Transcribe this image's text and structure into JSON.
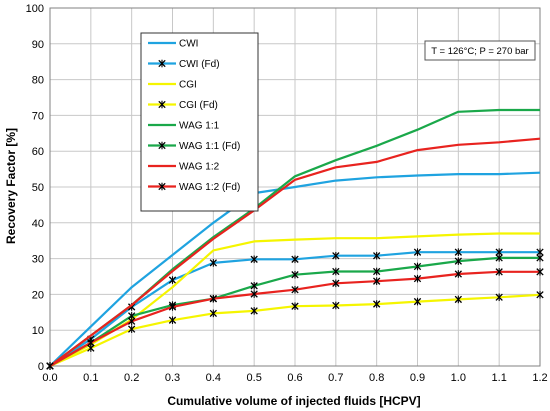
{
  "chart_data": {
    "type": "line",
    "xlabel": "Cumulative volume of injected fluids [HCPV]",
    "ylabel": "Recovery Factor [%]",
    "annotation": "T = 126°C; P = 270 bar",
    "xlim": [
      0,
      1.2
    ],
    "ylim": [
      0,
      100
    ],
    "xticks": [
      "0.0",
      "0.1",
      "0.2",
      "0.3",
      "0.4",
      "0.5",
      "0.6",
      "0.7",
      "0.8",
      "0.9",
      "1.0",
      "1.1",
      "1.2"
    ],
    "yticks": [
      "0",
      "10",
      "20",
      "30",
      "40",
      "50",
      "60",
      "70",
      "80",
      "90",
      "100"
    ],
    "grid": true,
    "legend_position": "upper-left",
    "series": [
      {
        "name": "CWI",
        "color": "#1fa3e0",
        "marker": "none",
        "x": [
          0,
          0.1,
          0.2,
          0.3,
          0.4,
          0.5,
          0.6,
          0.7,
          0.8,
          0.9,
          1.0,
          1.1,
          1.2
        ],
        "y": [
          0,
          11,
          22,
          31,
          40,
          48.3,
          50,
          51.8,
          52.7,
          53.2,
          53.6,
          53.6,
          54
        ]
      },
      {
        "name": "CWI (Fd)",
        "color": "#1fa3e0",
        "marker": "x",
        "x": [
          0,
          0.1,
          0.2,
          0.3,
          0.4,
          0.5,
          0.6,
          0.7,
          0.8,
          0.9,
          1.0,
          1.1,
          1.2
        ],
        "y": [
          0,
          7.5,
          16.5,
          24,
          28.8,
          29.8,
          29.8,
          30.8,
          30.8,
          31.8,
          31.8,
          31.8,
          31.8
        ]
      },
      {
        "name": "CGI",
        "color": "#f5f500",
        "marker": "none",
        "x": [
          0,
          0.1,
          0.2,
          0.3,
          0.4,
          0.5,
          0.6,
          0.7,
          0.8,
          0.9,
          1.0,
          1.1,
          1.2
        ],
        "y": [
          0,
          6,
          13,
          22,
          32.3,
          34.8,
          35.3,
          35.7,
          35.7,
          36.2,
          36.7,
          37,
          37
        ]
      },
      {
        "name": "CGI (Fd)",
        "color": "#f5f500",
        "marker": "x",
        "x": [
          0,
          0.1,
          0.2,
          0.3,
          0.4,
          0.5,
          0.6,
          0.7,
          0.8,
          0.9,
          1.0,
          1.1,
          1.2
        ],
        "y": [
          0,
          5,
          10.3,
          12.8,
          14.7,
          15.4,
          16.7,
          16.9,
          17.3,
          18,
          18.6,
          19.2,
          19.9
        ]
      },
      {
        "name": "WAG 1:1",
        "color": "#1aa84a",
        "marker": "none",
        "x": [
          0,
          0.1,
          0.2,
          0.3,
          0.4,
          0.5,
          0.6,
          0.7,
          0.8,
          0.9,
          1.0,
          1.1,
          1.2
        ],
        "y": [
          0,
          8.5,
          17,
          27,
          36,
          44,
          53,
          57.5,
          61.5,
          66,
          71,
          71.5,
          71.5
        ]
      },
      {
        "name": "WAG 1:1 (Fd)",
        "color": "#1aa84a",
        "marker": "x",
        "x": [
          0,
          0.1,
          0.2,
          0.3,
          0.4,
          0.5,
          0.6,
          0.7,
          0.8,
          0.9,
          1.0,
          1.1,
          1.2
        ],
        "y": [
          0,
          6.5,
          14,
          17,
          18.8,
          22.4,
          25.5,
          26.4,
          26.4,
          27.8,
          29.3,
          30.2,
          30.2
        ]
      },
      {
        "name": "WAG 1:2",
        "color": "#e8231f",
        "marker": "none",
        "x": [
          0,
          0.1,
          0.2,
          0.3,
          0.4,
          0.5,
          0.6,
          0.7,
          0.8,
          0.9,
          1.0,
          1.1,
          1.2
        ],
        "y": [
          0,
          8.5,
          17,
          26.5,
          35.5,
          43.5,
          52,
          55.5,
          57,
          60.3,
          61.8,
          62.5,
          63.5
        ]
      },
      {
        "name": "WAG 1:2 (Fd)",
        "color": "#e8231f",
        "marker": "x",
        "x": [
          0,
          0.1,
          0.2,
          0.3,
          0.4,
          0.5,
          0.6,
          0.7,
          0.8,
          0.9,
          1.0,
          1.1,
          1.2
        ],
        "y": [
          0,
          6.5,
          12.5,
          16.5,
          18.8,
          20.1,
          21.3,
          23.1,
          23.7,
          24.4,
          25.7,
          26.3,
          26.3
        ]
      }
    ]
  }
}
